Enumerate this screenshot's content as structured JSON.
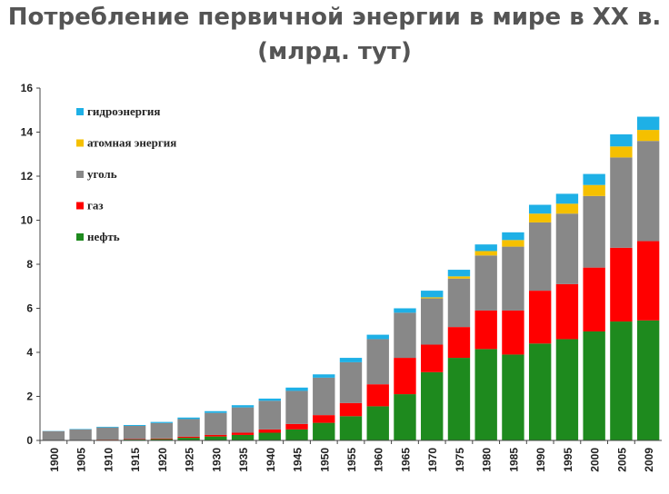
{
  "title_line1": "Потребление первичной энергии в мире в XX в.",
  "title_line2": "(млрд. тут)",
  "chart_data": {
    "type": "bar",
    "stacked": true,
    "title": "Потребление первичной энергии в мире в XX в. (млрд. тут)",
    "xlabel": "",
    "ylabel": "",
    "ylim": [
      0,
      16
    ],
    "yticks": [
      "0",
      "2",
      "4",
      "6",
      "8",
      "10",
      "12",
      "14",
      "16"
    ],
    "grid": false,
    "legend_placement": "top-left",
    "categories": [
      "1900",
      "1905",
      "1910",
      "1915",
      "1920",
      "1925",
      "1930",
      "1935",
      "1940",
      "1945",
      "1950",
      "1955",
      "1960",
      "1965",
      "1970",
      "1975",
      "1980",
      "1985",
      "1990",
      "1995",
      "2000",
      "2005",
      "2009"
    ],
    "series": [
      {
        "name": "нефть",
        "color": "#1e8a1e",
        "values": [
          0.02,
          0.02,
          0.03,
          0.04,
          0.06,
          0.12,
          0.18,
          0.25,
          0.35,
          0.5,
          0.8,
          1.1,
          1.55,
          2.1,
          3.1,
          3.75,
          4.15,
          3.9,
          4.4,
          4.6,
          4.95,
          5.4,
          5.45
        ]
      },
      {
        "name": "газ",
        "color": "#ff0000",
        "values": [
          0.0,
          0.0,
          0.01,
          0.02,
          0.03,
          0.05,
          0.07,
          0.1,
          0.15,
          0.25,
          0.35,
          0.6,
          1.0,
          1.65,
          1.25,
          1.4,
          1.75,
          2.0,
          2.4,
          2.5,
          2.9,
          3.35,
          3.6
        ]
      },
      {
        "name": "уголь",
        "color": "#888888",
        "values": [
          0.4,
          0.48,
          0.55,
          0.6,
          0.7,
          0.8,
          1.0,
          1.15,
          1.3,
          1.5,
          1.7,
          1.85,
          2.05,
          2.05,
          2.1,
          2.2,
          2.5,
          2.9,
          3.1,
          3.2,
          3.25,
          4.1,
          4.55
        ]
      },
      {
        "name": "атомная энергия",
        "color": "#f5c000",
        "values": [
          0,
          0,
          0,
          0,
          0,
          0,
          0,
          0,
          0,
          0,
          0,
          0,
          0,
          0,
          0.05,
          0.1,
          0.2,
          0.3,
          0.4,
          0.45,
          0.5,
          0.5,
          0.5
        ]
      },
      {
        "name": "гидроэнергия",
        "color": "#1eb0e6",
        "values": [
          0.01,
          0.02,
          0.03,
          0.04,
          0.05,
          0.07,
          0.08,
          0.1,
          0.1,
          0.15,
          0.15,
          0.2,
          0.2,
          0.2,
          0.3,
          0.3,
          0.3,
          0.35,
          0.4,
          0.45,
          0.5,
          0.55,
          0.6
        ]
      }
    ]
  }
}
